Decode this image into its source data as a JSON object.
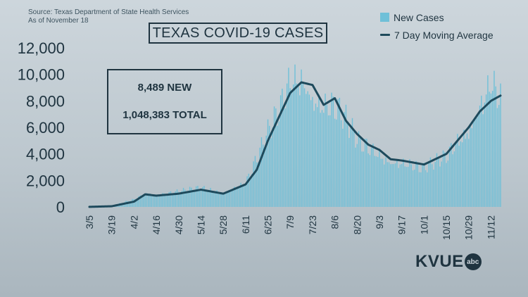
{
  "source_line1": "Source: Texas Department of State Health Services",
  "source_line2": "As of November 18",
  "stats": {
    "new": "8,489 NEW",
    "total": "1,048,383 TOTAL"
  },
  "logo": {
    "word": "KVUE",
    "badge": "abc"
  },
  "colors": {
    "bars": "#6fc0d8",
    "line": "#1e4a5c",
    "text": "#1f3440"
  },
  "chart_data": {
    "type": "bar",
    "title": "TEXAS COVID-19 CASES",
    "xlabel": "",
    "ylabel": "",
    "ylim": [
      0,
      12000
    ],
    "yticks": [
      "0",
      "2,000",
      "4,000",
      "6,000",
      "8,000",
      "10,000",
      "12,000"
    ],
    "xticks": [
      "3/5",
      "3/19",
      "4/2",
      "4/16",
      "4/30",
      "5/14",
      "5/28",
      "6/11",
      "6/25",
      "7/9",
      "7/23",
      "8/6",
      "8/20",
      "9/3",
      "9/17",
      "10/1",
      "10/15",
      "10/29",
      "11/12"
    ],
    "grid": false,
    "legend": "top-right",
    "series": [
      {
        "name": "New Cases",
        "type": "bar"
      },
      {
        "name": "7 Day Moving Average",
        "type": "line"
      }
    ],
    "anchors": [
      {
        "x": "3/5",
        "bar": 10,
        "avg": 5
      },
      {
        "x": "3/19",
        "bar": 80,
        "avg": 50
      },
      {
        "x": "4/2",
        "bar": 600,
        "avg": 400
      },
      {
        "x": "4/9",
        "bar": 1100,
        "avg": 950
      },
      {
        "x": "4/16",
        "bar": 900,
        "avg": 850
      },
      {
        "x": "4/30",
        "bar": 1200,
        "avg": 1000
      },
      {
        "x": "5/14",
        "bar": 1500,
        "avg": 1300
      },
      {
        "x": "5/28",
        "bar": 1100,
        "avg": 1000
      },
      {
        "x": "6/11",
        "bar": 1900,
        "avg": 1700
      },
      {
        "x": "6/18",
        "bar": 3800,
        "avg": 2800
      },
      {
        "x": "6/25",
        "bar": 5800,
        "avg": 5000
      },
      {
        "x": "7/2",
        "bar": 7500,
        "avg": 6800
      },
      {
        "x": "7/9",
        "bar": 10000,
        "avg": 8600
      },
      {
        "x": "7/16",
        "bar": 10200,
        "avg": 9400
      },
      {
        "x": "7/23",
        "bar": 8500,
        "avg": 9200
      },
      {
        "x": "7/30",
        "bar": 8000,
        "avg": 7700
      },
      {
        "x": "8/6",
        "bar": 8000,
        "avg": 8200
      },
      {
        "x": "8/13",
        "bar": 6800,
        "avg": 6500
      },
      {
        "x": "8/20",
        "bar": 5200,
        "avg": 5500
      },
      {
        "x": "8/27",
        "bar": 4700,
        "avg": 4700
      },
      {
        "x": "9/3",
        "bar": 4100,
        "avg": 4300
      },
      {
        "x": "9/10",
        "bar": 3500,
        "avg": 3600
      },
      {
        "x": "9/17",
        "bar": 3500,
        "avg": 3500
      },
      {
        "x": "10/1",
        "bar": 3000,
        "avg": 3200
      },
      {
        "x": "10/15",
        "bar": 4000,
        "avg": 4000
      },
      {
        "x": "10/22",
        "bar": 5200,
        "avg": 5000
      },
      {
        "x": "10/29",
        "bar": 6000,
        "avg": 6000
      },
      {
        "x": "11/5",
        "bar": 8000,
        "avg": 7200
      },
      {
        "x": "11/12",
        "bar": 9800,
        "avg": 8000
      },
      {
        "x": "11/18",
        "bar": 8489,
        "avg": 8400
      }
    ]
  }
}
